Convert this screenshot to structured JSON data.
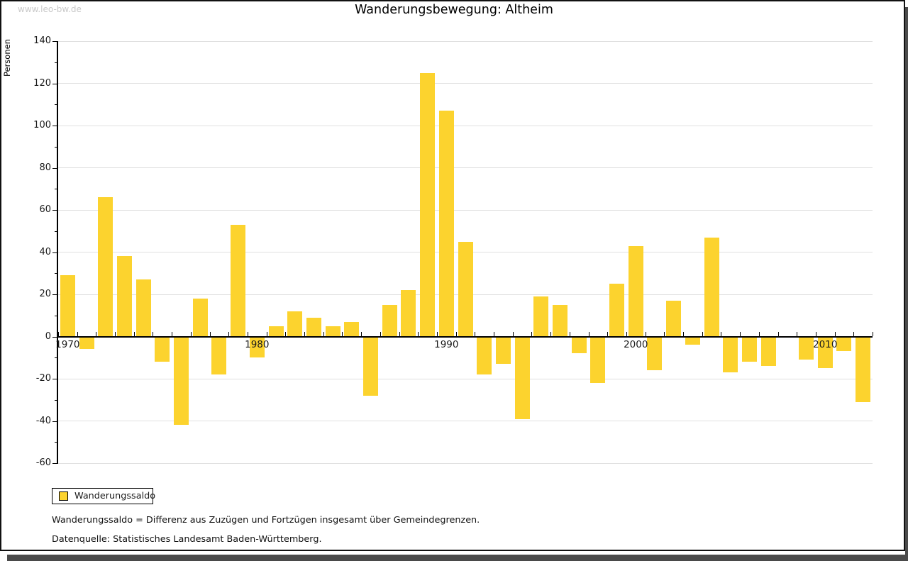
{
  "watermark": "www.leo-bw.de",
  "header": {
    "title": "Wanderungsbewegung: Altheim"
  },
  "y_axis_title": "Personen",
  "legend": {
    "label": "Wanderungssaldo",
    "swatch_color": "#fcd32e"
  },
  "footnotes": [
    "Wanderungssaldo = Differenz aus Zuzügen und Fortzügen insgesamt über Gemeindegrenzen.",
    "Datenquelle: Statistisches Landesamt Baden-Württemberg."
  ],
  "colors": {
    "bar": "#fcd32e",
    "grid": "#e0e0e0",
    "axis": "#000000",
    "watermark": "#c9c9c9",
    "shadow": "#4a4a4a"
  },
  "chart_data": {
    "type": "bar",
    "title": "Wanderungsbewegung: Altheim",
    "xlabel": "",
    "ylabel": "Personen",
    "ylim": [
      -60,
      140
    ],
    "y_tick_step": 20,
    "y_minor_tick_step": 10,
    "grid": true,
    "legend_position": "bottom-left",
    "x_tick_labels": [
      "1970",
      "1980",
      "1990",
      "2000",
      "2010"
    ],
    "categories": [
      1970,
      1971,
      1972,
      1973,
      1974,
      1975,
      1976,
      1977,
      1978,
      1979,
      1980,
      1981,
      1982,
      1983,
      1984,
      1985,
      1986,
      1987,
      1988,
      1989,
      1990,
      1991,
      1992,
      1993,
      1994,
      1995,
      1996,
      1997,
      1998,
      1999,
      2000,
      2001,
      2002,
      2003,
      2004,
      2005,
      2006,
      2007,
      2008,
      2009,
      2010,
      2011,
      2012
    ],
    "series": [
      {
        "name": "Wanderungssaldo",
        "values": [
          29,
          -6,
          66,
          38,
          27,
          -12,
          -42,
          18,
          -18,
          53,
          -10,
          5,
          12,
          9,
          5,
          7,
          -28,
          15,
          22,
          125,
          107,
          45,
          -18,
          -13,
          -39,
          19,
          15,
          -8,
          -22,
          25,
          43,
          -16,
          17,
          -4,
          47,
          -17,
          -12,
          -14,
          0,
          -11,
          -15,
          -7,
          -31
        ]
      }
    ]
  }
}
